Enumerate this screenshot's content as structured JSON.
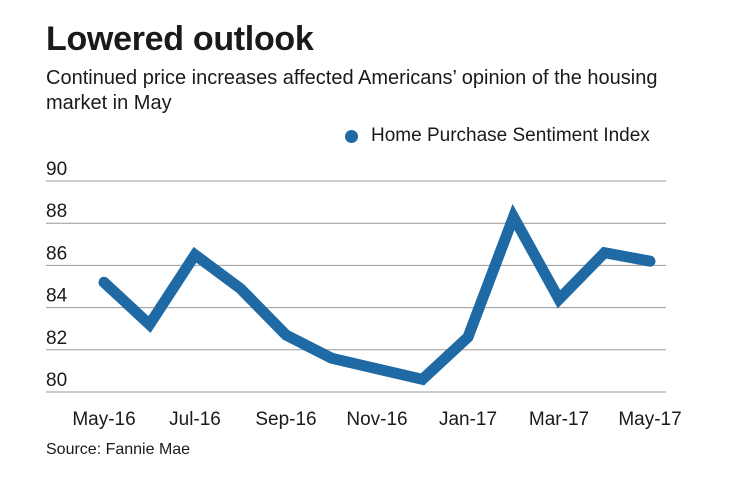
{
  "header": {
    "title": "Lowered outlook",
    "subtitle": "Continued price increases affected Americans’ opinion of the housing market in May"
  },
  "legend": {
    "label": "Home Purchase Sentiment Index"
  },
  "source": "Source: Fannie Mae",
  "colors": {
    "line": "#1f6aa5",
    "grid": "#999999"
  },
  "chart_data": {
    "type": "line",
    "title": "Lowered outlook",
    "xlabel": "",
    "ylabel": "",
    "ylim": [
      80,
      90
    ],
    "yticks": [
      80,
      82,
      84,
      86,
      88,
      90
    ],
    "x_tick_labels": [
      "May-16",
      "Jul-16",
      "Sep-16",
      "Nov-16",
      "Jan-17",
      "Mar-17",
      "May-17"
    ],
    "x": [
      "May-16",
      "Jun-16",
      "Jul-16",
      "Aug-16",
      "Sep-16",
      "Oct-16",
      "Nov-16",
      "Dec-16",
      "Jan-17",
      "Feb-17",
      "Mar-17",
      "Apr-17",
      "May-17"
    ],
    "series": [
      {
        "name": "Home Purchase Sentiment Index",
        "values": [
          85.2,
          83.2,
          86.5,
          84.9,
          82.7,
          81.6,
          81.1,
          80.6,
          82.6,
          88.3,
          84.4,
          86.6,
          86.2
        ]
      }
    ],
    "grid": true,
    "legend_position": "top-right"
  }
}
